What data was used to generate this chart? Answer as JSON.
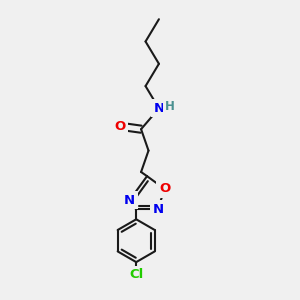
{
  "bg_color": "#f0f0f0",
  "bond_color": "#1a1a1a",
  "bond_width": 1.5,
  "atom_colors": {
    "N": "#0000ee",
    "O": "#ee0000",
    "Cl": "#22cc00",
    "H": "#4a9090",
    "C": "#1a1a1a"
  },
  "font_size": 9.5,
  "fig_size": [
    3.0,
    3.0
  ],
  "dpi": 100
}
